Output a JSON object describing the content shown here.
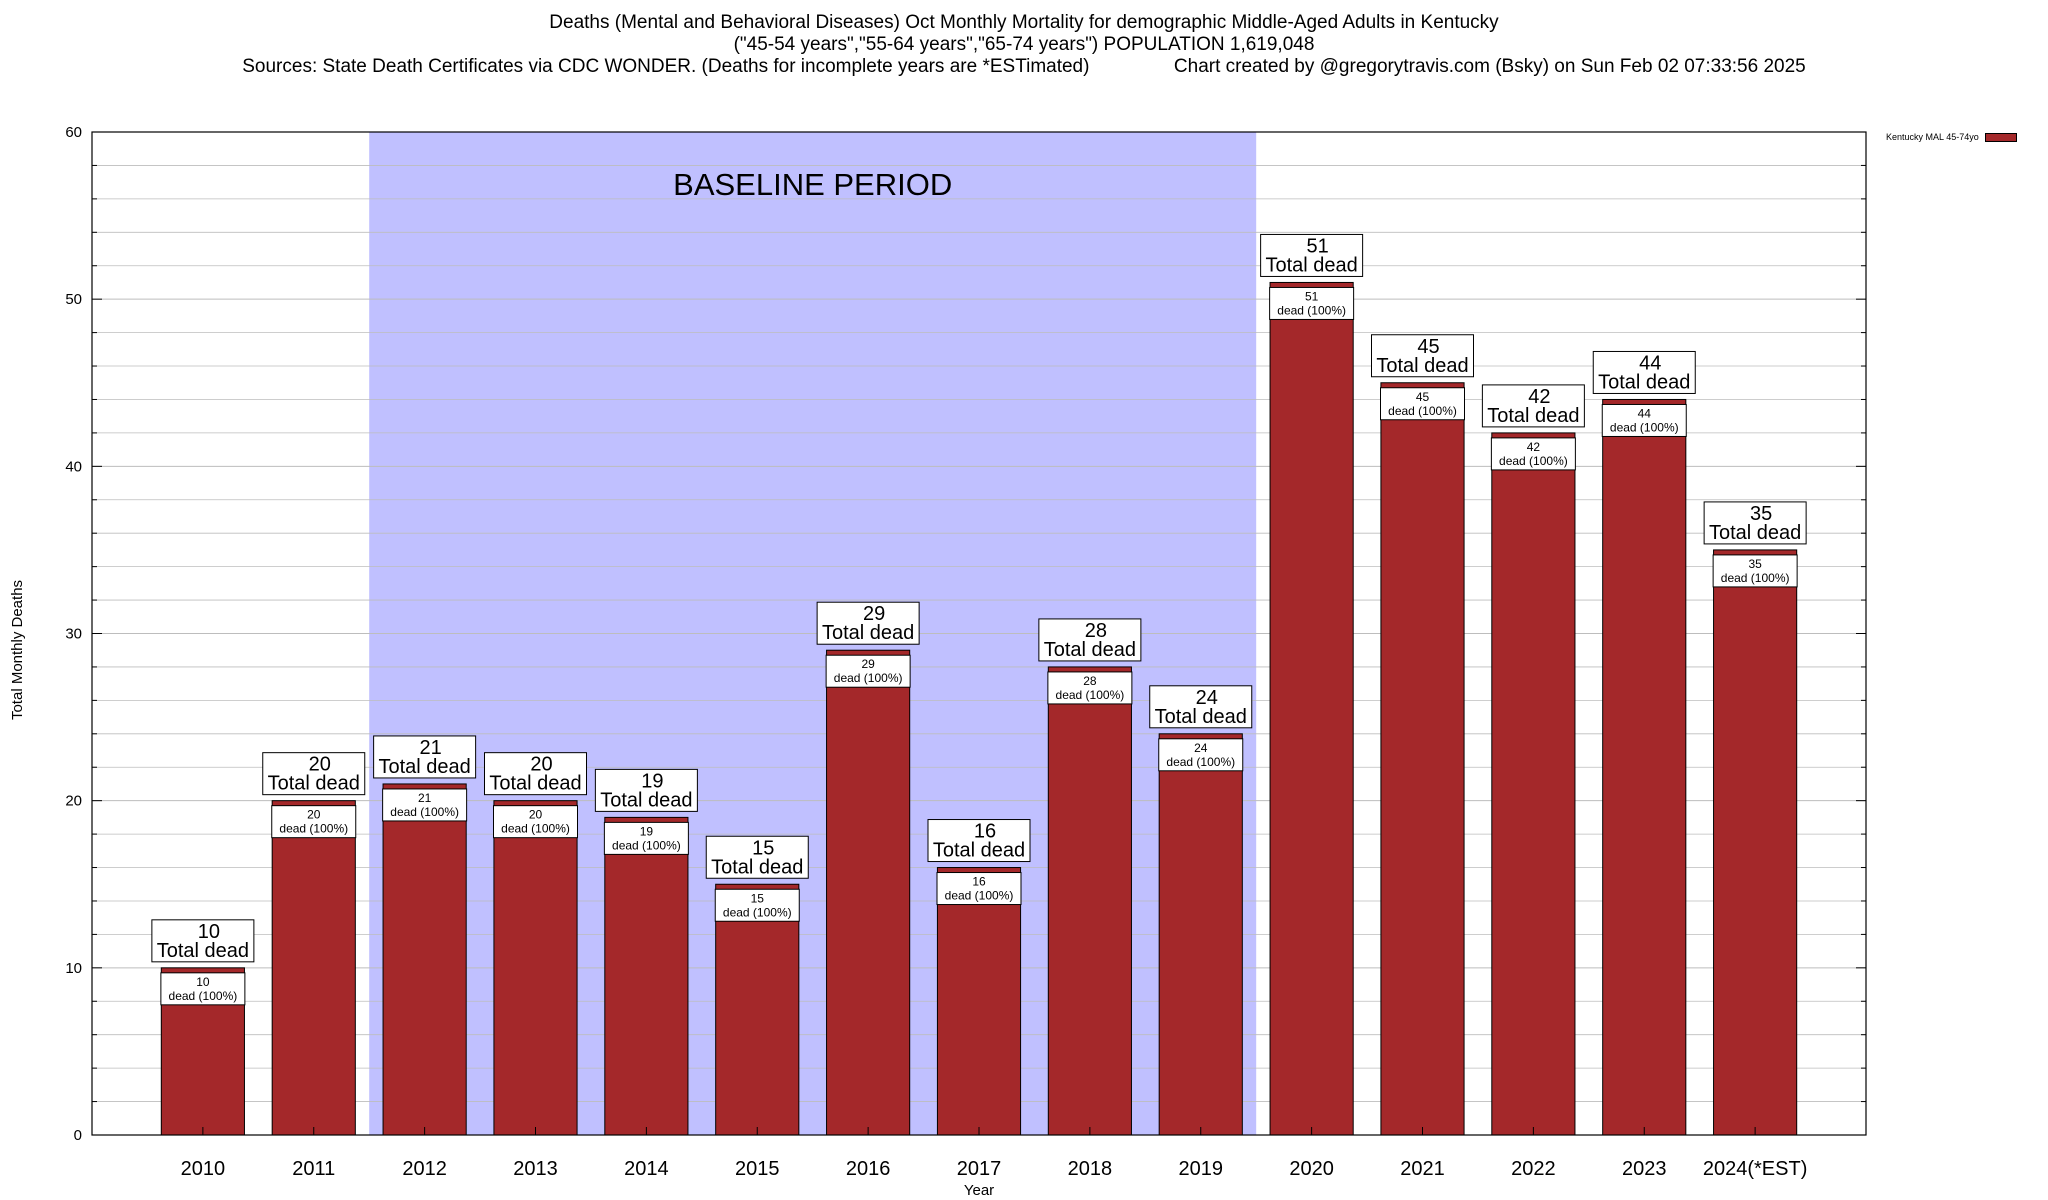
{
  "title": {
    "line1": "Deaths (Mental and Behavioral Diseases) Oct Monthly Mortality for demographic Middle-Aged Adults in Kentucky",
    "line2": "(\"45-54 years\",\"55-64 years\",\"65-74 years\") POPULATION 1,619,048",
    "line3": "Sources: State Death Certificates via CDC WONDER. (Deaths for incomplete years are *ESTimated)                Chart created by @gregorytravis.com (Bsky) on Sun Feb 02 07:33:56 2025"
  },
  "colors": {
    "bar": "#a4282a",
    "baseline_band": "#c0c0ff",
    "grid": "#bdbdbd"
  },
  "chart_data": {
    "type": "bar",
    "categories": [
      "2010",
      "2011",
      "2012",
      "2013",
      "2014",
      "2015",
      "2016",
      "2017",
      "2018",
      "2019",
      "2020",
      "2021",
      "2022",
      "2023",
      "2024(*EST)"
    ],
    "series": [
      {
        "name": "Kentucky MAL 45-74yo",
        "values": [
          10,
          20,
          21,
          20,
          19,
          15,
          29,
          16,
          28,
          24,
          51,
          45,
          42,
          44,
          35
        ]
      }
    ],
    "xlabel": "Year",
    "ylabel": "Total Monthly Deaths",
    "ylim": [
      0,
      60
    ],
    "yticks": [
      0,
      10,
      20,
      30,
      40,
      50,
      60
    ],
    "grid": true,
    "legend_position": "top-right",
    "annotation": {
      "text": "BASELINE PERIOD",
      "from_category": "2012",
      "to_category": "2019"
    },
    "top_label_suffix": "Total dead",
    "inner_label_suffix": "dead (100%)"
  }
}
